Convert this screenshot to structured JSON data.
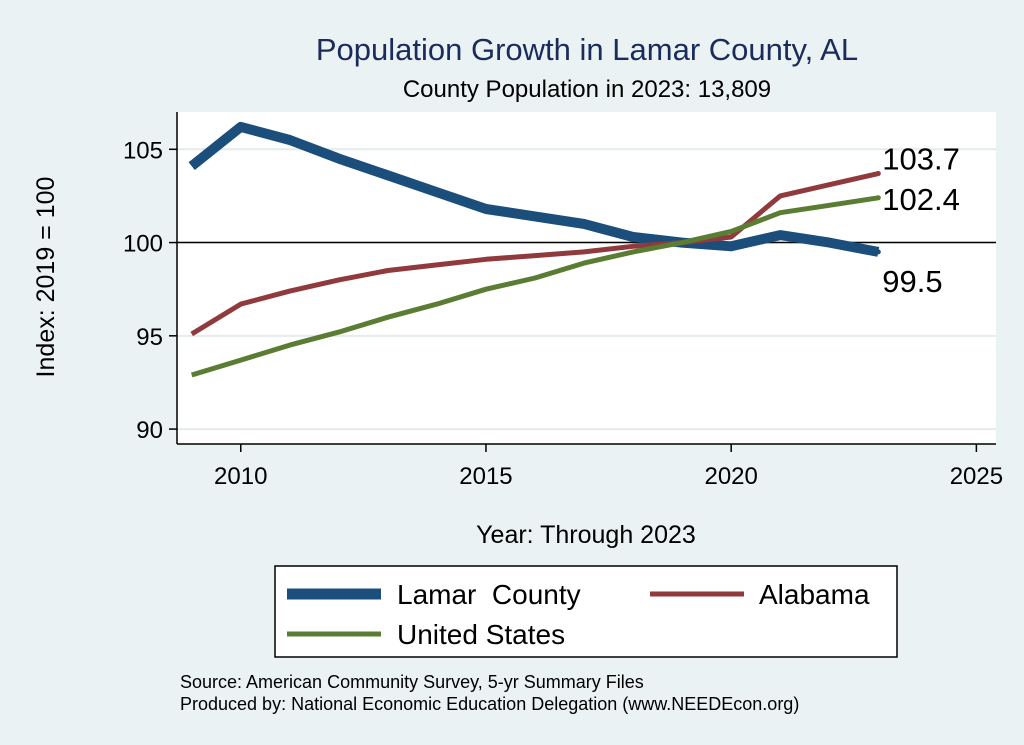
{
  "chart_data": {
    "type": "line",
    "title": "Population Growth in Lamar County, AL",
    "subtitle": "County Population in 2023: 13,809",
    "xlabel": "Year: Through 2023",
    "ylabel": "Index: 2019 = 100",
    "xlim": [
      2008.7,
      2025.4
    ],
    "ylim": [
      89.2,
      107.0
    ],
    "xticks": [
      2010,
      2015,
      2020,
      2025
    ],
    "yticks": [
      90,
      95,
      100,
      105
    ],
    "reference_line": 100,
    "grid": true,
    "x": [
      2009,
      2010,
      2011,
      2012,
      2013,
      2014,
      2015,
      2016,
      2017,
      2018,
      2019,
      2020,
      2021,
      2022,
      2023
    ],
    "series": [
      {
        "name": "Lamar  County",
        "color": "#1c4e7c",
        "values": [
          104.1,
          106.2,
          105.5,
          104.5,
          103.6,
          102.7,
          101.8,
          101.4,
          101.0,
          100.3,
          100.0,
          99.8,
          100.4,
          100.0,
          99.5
        ],
        "end_label": "99.5"
      },
      {
        "name": "Alabama",
        "color": "#903a3e",
        "values": [
          95.1,
          96.7,
          97.4,
          98.0,
          98.5,
          98.8,
          99.1,
          99.3,
          99.5,
          99.8,
          100.0,
          100.3,
          102.5,
          103.1,
          103.7
        ],
        "end_label": "103.7"
      },
      {
        "name": "United States",
        "color": "#5a7d33",
        "values": [
          92.9,
          93.7,
          94.5,
          95.2,
          96.0,
          96.7,
          97.5,
          98.1,
          98.9,
          99.5,
          100.0,
          100.6,
          101.6,
          102.0,
          102.4
        ],
        "end_label": "102.4"
      }
    ],
    "legend": {
      "placement": "bottom",
      "entries": [
        "Lamar  County",
        "Alabama",
        "United States"
      ]
    },
    "notes": [
      "Source: American Community Survey, 5-yr Summary Files",
      "Produced by: National Economic Education Delegation (www.NEEDEcon.org)"
    ]
  },
  "colors": {
    "background": "#eaf2f3",
    "plot_background": "#ffffff",
    "title": "#1a2b5c",
    "grid": "#e4ecee"
  }
}
